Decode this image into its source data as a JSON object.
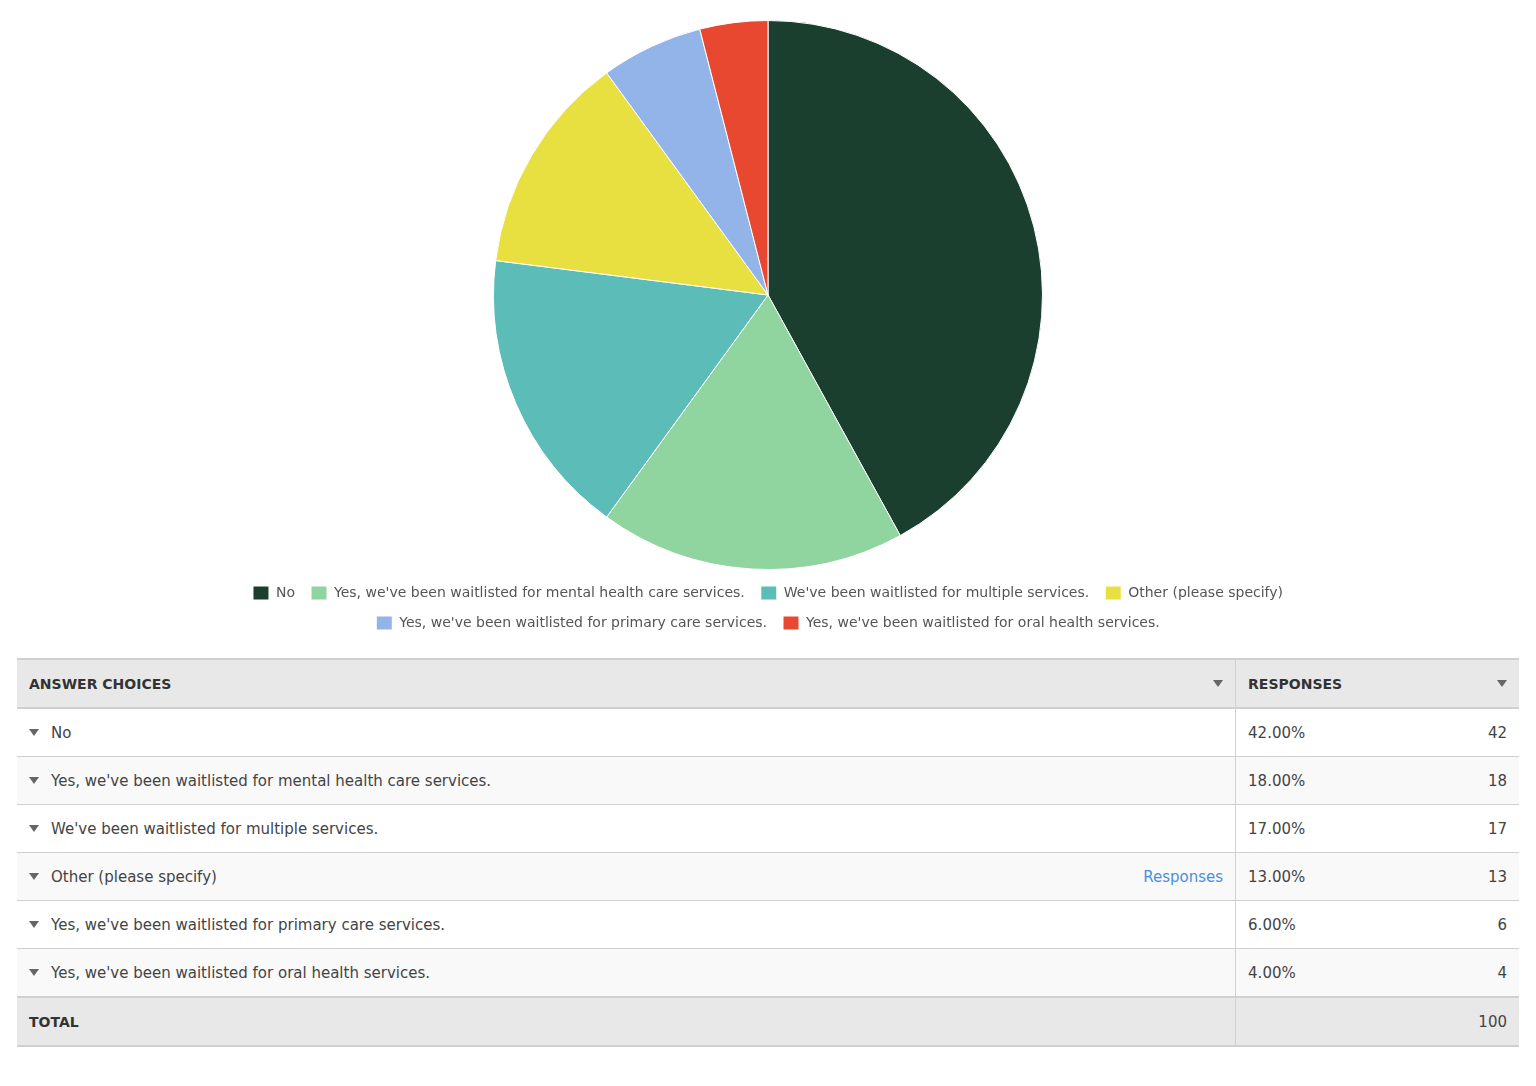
{
  "chart_data": {
    "type": "pie",
    "categories": [
      "No",
      "Yes, we've been waitlisted for mental health care services.",
      "We've been waitlisted for multiple services.",
      "Other (please specify)",
      "Yes, we've been waitlisted for primary care services.",
      "Yes, we've been waitlisted for oral health services."
    ],
    "values": [
      42,
      18,
      17,
      13,
      6,
      4
    ],
    "colors": [
      "#1a3f2e",
      "#90d4a0",
      "#5bbcb8",
      "#e8e040",
      "#92b4e8",
      "#e84830"
    ],
    "legend": "bottom",
    "table": {
      "columns": [
        "ANSWER CHOICES",
        "RESPONSES"
      ],
      "rows": [
        {
          "label": "No",
          "percent": {
            "value": 42.0,
            "label": "42.00%"
          },
          "count": 42
        },
        {
          "label": "Yes, we've been waitlisted for mental health care services.",
          "percent": {
            "value": 18.0,
            "label": "18.00%"
          },
          "count": 18
        },
        {
          "label": "We've been waitlisted for multiple services.",
          "percent": {
            "value": 17.0,
            "label": "17.00%"
          },
          "count": 17
        },
        {
          "label": "Other (please specify)",
          "percent": {
            "value": 13.0,
            "label": "13.00%"
          },
          "count": 13,
          "extra": "Responses"
        },
        {
          "label": "Yes, we've been waitlisted for primary care services.",
          "percent": {
            "value": 6.0,
            "label": "6.00%"
          },
          "count": 6
        },
        {
          "label": "Yes, we've been waitlisted for oral health services.",
          "percent": {
            "value": 4.0,
            "label": "4.00%"
          },
          "count": 4
        }
      ],
      "total_label": "TOTAL",
      "total": 100
    }
  }
}
